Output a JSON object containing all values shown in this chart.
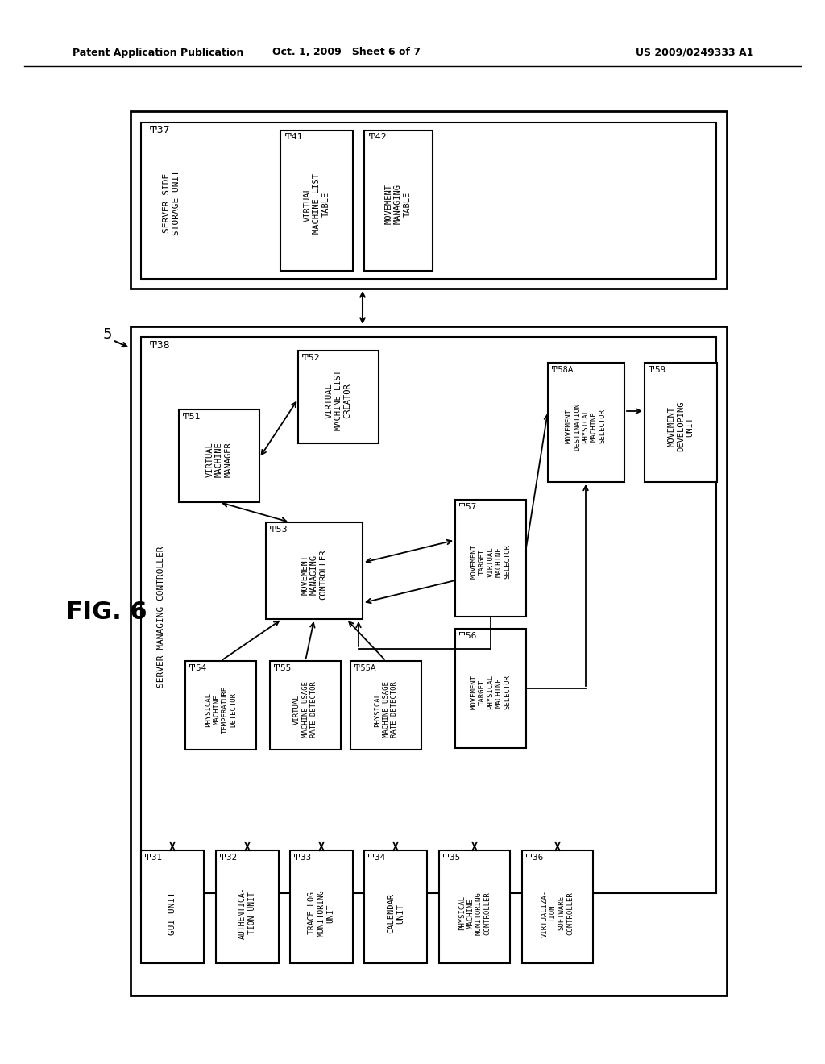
{
  "header_left": "Patent Application Publication",
  "header_mid": "Oct. 1, 2009   Sheet 6 of 7",
  "header_right": "US 2009/0249333 A1",
  "fig_label": "FIG. 6",
  "background": "#ffffff"
}
